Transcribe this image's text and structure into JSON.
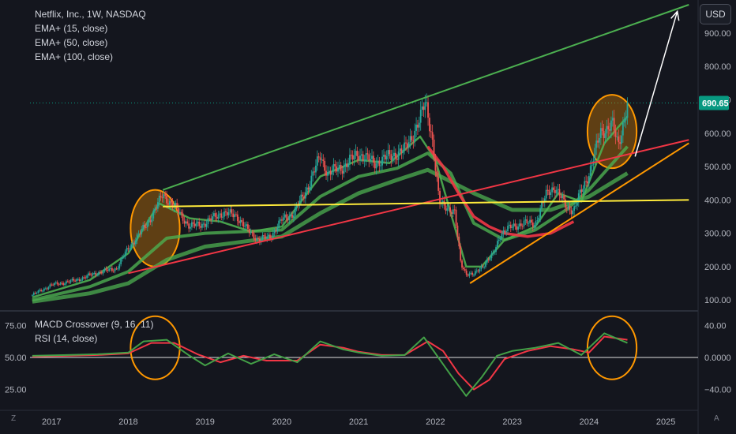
{
  "header": {
    "symbol_title": "Netflix, Inc., 1W, NASDAQ",
    "indicators": [
      "EMA+ (15, close)",
      "EMA+ (50, close)",
      "EMA+ (100, close)"
    ]
  },
  "currency_button": "USD",
  "lower_pane": {
    "indicators": [
      "MACD Crossover (9, 16, 11)",
      "RSI (14, close)"
    ]
  },
  "corner_labels": {
    "left": "Z",
    "right": "A"
  },
  "colors": {
    "background": "#14161e",
    "up": "#26a69a",
    "down": "#ef5350",
    "ema": "#4caf50",
    "ema_slow": "#f23645",
    "trend_green": "#4caf50",
    "trend_red": "#f23645",
    "trend_yellow": "#ffeb3b",
    "trend_orange": "#ff9800",
    "price_tag": "#089981"
  },
  "chart_data": [
    {
      "type": "candlestick",
      "title": "Netflix, Inc., 1W, NASDAQ",
      "y_axis_ticks": [
        "900.00",
        "800.00",
        "700.00",
        "600.00",
        "500.00",
        "400.00",
        "300.00",
        "200.00",
        "100.00"
      ],
      "y_axis_values": [
        900,
        800,
        700,
        600,
        500,
        400,
        300,
        200,
        100
      ],
      "x_axis_ticks": [
        "2017",
        "2018",
        "2019",
        "2020",
        "2021",
        "2022",
        "2023",
        "2024",
        "2025"
      ],
      "x_axis_values": [
        2017,
        2018,
        2019,
        2020,
        2021,
        2022,
        2023,
        2024,
        2025
      ],
      "ylim": [
        72,
        985
      ],
      "xlim": [
        2016.72,
        2025.4
      ],
      "last_price": 690.65,
      "last_price_label": "690.65",
      "price_series": {
        "x": [
          2016.75,
          2017.0,
          2017.3,
          2017.6,
          2017.85,
          2018.0,
          2018.25,
          2018.45,
          2018.6,
          2018.8,
          2019.0,
          2019.2,
          2019.4,
          2019.55,
          2019.7,
          2019.85,
          2020.0,
          2020.15,
          2020.3,
          2020.5,
          2020.6,
          2020.8,
          2021.0,
          2021.2,
          2021.4,
          2021.6,
          2021.8,
          2021.87,
          2021.95,
          2022.05,
          2022.15,
          2022.25,
          2022.33,
          2022.4,
          2022.5,
          2022.6,
          2022.75,
          2022.85,
          2023.0,
          2023.15,
          2023.3,
          2023.45,
          2023.55,
          2023.7,
          2023.8,
          2024.0,
          2024.15,
          2024.3,
          2024.38,
          2024.5
        ],
        "y": [
          115,
          145,
          158,
          182,
          195,
          255,
          330,
          415,
          380,
          320,
          330,
          360,
          355,
          310,
          280,
          290,
          340,
          360,
          420,
          530,
          480,
          500,
          540,
          510,
          530,
          550,
          640,
          695,
          600,
          390,
          380,
          360,
          210,
          180,
          175,
          200,
          235,
          300,
          320,
          330,
          330,
          420,
          440,
          380,
          370,
          480,
          600,
          630,
          560,
          690
        ]
      },
      "ema_series": [
        {
          "label": "EMA 15",
          "x": [
            2016.75,
            2017.5,
            2018.0,
            2018.4,
            2018.8,
            2019.2,
            2019.6,
            2020.0,
            2020.5,
            2021.0,
            2021.4,
            2021.8,
            2022.0,
            2022.2,
            2022.4,
            2022.6,
            2022.9,
            2023.3,
            2023.6,
            2023.9,
            2024.2,
            2024.5
          ],
          "y": [
            108,
            160,
            240,
            390,
            345,
            335,
            305,
            320,
            470,
            520,
            510,
            590,
            520,
            360,
            200,
            200,
            280,
            320,
            420,
            395,
            570,
            650
          ]
        },
        {
          "label": "EMA 50",
          "x": [
            2016.75,
            2017.5,
            2018.0,
            2018.5,
            2019.0,
            2019.5,
            2020.0,
            2020.5,
            2021.0,
            2021.5,
            2021.9,
            2022.2,
            2022.5,
            2022.9,
            2023.3,
            2023.7,
            2024.0,
            2024.5
          ],
          "y": [
            100,
            140,
            185,
            285,
            300,
            305,
            310,
            410,
            470,
            495,
            540,
            480,
            330,
            280,
            310,
            370,
            430,
            560
          ]
        },
        {
          "label": "EMA 100",
          "x": [
            2016.75,
            2017.5,
            2018.0,
            2018.5,
            2019.0,
            2019.5,
            2020.0,
            2020.5,
            2021.0,
            2021.5,
            2021.9,
            2022.5,
            2023.0,
            2023.5,
            2024.0,
            2024.5
          ],
          "y": [
            95,
            120,
            150,
            220,
            260,
            275,
            290,
            360,
            420,
            460,
            490,
            420,
            370,
            370,
            410,
            480
          ]
        },
        {
          "label": "EMA slow",
          "x": [
            2021.9,
            2022.1,
            2022.3,
            2022.5,
            2022.7,
            2022.9,
            2023.2,
            2023.5,
            2023.8
          ],
          "y": [
            560,
            500,
            420,
            350,
            320,
            300,
            290,
            300,
            335
          ]
        }
      ],
      "trend_lines": [
        {
          "label": "upper green channel",
          "from": [
            2018.45,
            430
          ],
          "to": [
            2025.3,
            985
          ]
        },
        {
          "label": "lower red channel",
          "from": [
            2018.0,
            180
          ],
          "to": [
            2025.3,
            580
          ]
        },
        {
          "label": "yellow horizontal",
          "from": [
            2018.45,
            380
          ],
          "to": [
            2025.3,
            400
          ]
        },
        {
          "label": "orange rising support",
          "from": [
            2022.45,
            150
          ],
          "to": [
            2025.3,
            570
          ]
        }
      ],
      "projection_arrow": {
        "from": [
          2024.6,
          530
        ],
        "to": [
          2025.15,
          965
        ]
      },
      "highlight_ellipses": [
        {
          "cx": 2018.35,
          "cy": 315,
          "rx_years": 0.32,
          "ry_price": 115
        },
        {
          "cx": 2024.3,
          "cy": 605,
          "rx_years": 0.32,
          "ry_price": 110
        }
      ]
    },
    {
      "type": "line",
      "title": "MACD Crossover (9, 16, 11) / RSI (14, close)",
      "left_axis_ticks": [
        "75.00",
        "50.00",
        "25.00"
      ],
      "left_axis_values": [
        75,
        50,
        25
      ],
      "right_axis_ticks": [
        "40.00",
        "0.0000",
        "−40.00"
      ],
      "right_axis_values": [
        40,
        0,
        -40
      ],
      "ylim": [
        -62,
        56
      ],
      "zero_line": 0,
      "series": [
        {
          "name": "MACD",
          "x": [
            2016.75,
            2017.2,
            2017.6,
            2018.0,
            2018.2,
            2018.5,
            2018.8,
            2019.0,
            2019.3,
            2019.6,
            2019.9,
            2020.2,
            2020.5,
            2020.8,
            2021.0,
            2021.3,
            2021.6,
            2021.85,
            2022.0,
            2022.2,
            2022.4,
            2022.6,
            2022.8,
            2023.0,
            2023.3,
            2023.6,
            2023.9,
            2024.0,
            2024.2,
            2024.5
          ],
          "y": [
            2,
            3,
            4,
            6,
            20,
            22,
            2,
            -10,
            5,
            -8,
            4,
            -6,
            20,
            10,
            6,
            2,
            3,
            25,
            5,
            -22,
            -48,
            -25,
            2,
            8,
            12,
            18,
            3,
            12,
            30,
            18
          ]
        },
        {
          "name": "Signal",
          "x": [
            2016.75,
            2017.2,
            2017.6,
            2018.0,
            2018.3,
            2018.6,
            2018.9,
            2019.2,
            2019.5,
            2019.8,
            2020.2,
            2020.5,
            2020.8,
            2021.0,
            2021.3,
            2021.6,
            2021.9,
            2022.1,
            2022.3,
            2022.5,
            2022.7,
            2022.9,
            2023.2,
            2023.5,
            2023.8,
            2024.0,
            2024.2,
            2024.5
          ],
          "y": [
            1,
            2,
            3,
            5,
            18,
            18,
            4,
            -6,
            2,
            -4,
            -4,
            16,
            12,
            7,
            3,
            3,
            20,
            8,
            -20,
            -40,
            -28,
            -2,
            8,
            14,
            10,
            6,
            26,
            22
          ]
        }
      ]
    }
  ]
}
